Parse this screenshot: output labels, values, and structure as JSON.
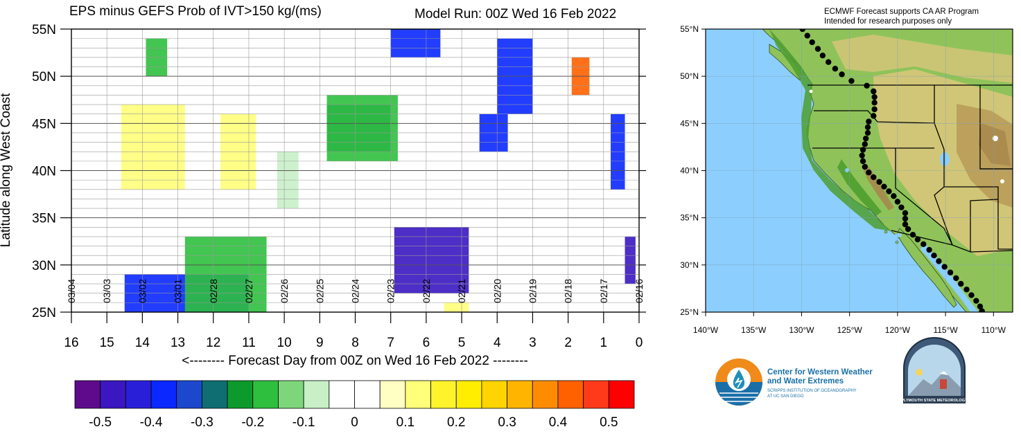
{
  "chart_data": [
    {
      "type": "heatmap",
      "title": "EPS minus GEFS Prob of IVT>150 kg/(ms)",
      "subtitle": "Model Run: 00Z Wed 16 Feb 2022",
      "ylabel": "Latitude along West Coast",
      "xlabel": "<-------- Forecast Day from 00Z on Wed 16 Feb 2022 --------",
      "y_ticks": [
        "55N",
        "50N",
        "45N",
        "40N",
        "35N",
        "30N",
        "25N"
      ],
      "y_values": [
        55,
        50,
        45,
        40,
        35,
        30,
        25
      ],
      "ylim": [
        25,
        55
      ],
      "x_ticks": [
        "16",
        "15",
        "14",
        "13",
        "12",
        "11",
        "10",
        "9",
        "8",
        "7",
        "6",
        "5",
        "4",
        "3",
        "2",
        "1",
        "0"
      ],
      "x_values": [
        16,
        15,
        14,
        13,
        12,
        11,
        10,
        9,
        8,
        7,
        6,
        5,
        4,
        3,
        2,
        1,
        0
      ],
      "xlim": [
        16,
        0
      ],
      "date_labels": [
        "03/04",
        "03/03",
        "03/02",
        "03/01",
        "02/28",
        "02/27",
        "02/26",
        "02/25",
        "02/24",
        "02/23",
        "02/22",
        "02/21",
        "02/20",
        "02/19",
        "02/18",
        "02/17",
        "02/16"
      ],
      "date_positions": [
        16,
        15,
        14,
        13,
        12,
        11,
        10,
        9,
        8,
        7,
        6,
        5,
        4,
        3,
        2,
        1,
        0
      ],
      "grid": "horizontal lines at each latitude, vertical lines at each day",
      "features": [
        {
          "label": "-0.5",
          "day_range": [
            4.8,
            6.9
          ],
          "lat_range": [
            27,
            34
          ]
        },
        {
          "label": "-0.4",
          "day_range": [
            11.0,
            14.5
          ],
          "lat_range": [
            25,
            29
          ]
        },
        {
          "label": "-0.3",
          "day_range": [
            7.0,
            8.8
          ],
          "lat_range": [
            42,
            47
          ]
        },
        {
          "label": "-0.2",
          "day_range": [
            6.8,
            8.8
          ],
          "lat_range": [
            41,
            48
          ]
        },
        {
          "label": "-0.4",
          "day_range": [
            5.6,
            7.0
          ],
          "lat_range": [
            52,
            55
          ]
        },
        {
          "label": "-0.4",
          "day_range": [
            3.7,
            4.5
          ],
          "lat_range": [
            42,
            46
          ]
        },
        {
          "label": "-0.4",
          "day_range": [
            3.0,
            4.0
          ],
          "lat_range": [
            46,
            54
          ]
        },
        {
          "label": "-0.1",
          "day_range": [
            9.6,
            10.2
          ],
          "lat_range": [
            36,
            42
          ]
        },
        {
          "label": "-0.2",
          "day_range": [
            13.3,
            13.9
          ],
          "lat_range": [
            50,
            54
          ]
        },
        {
          "label": "-0.2",
          "day_range": [
            10.5,
            12.8
          ],
          "lat_range": [
            25,
            33
          ]
        },
        {
          "label": "0.1",
          "day_range": [
            12.8,
            14.6
          ],
          "lat_range": [
            38,
            47
          ]
        },
        {
          "label": "0.1",
          "day_range": [
            10.8,
            11.8
          ],
          "lat_range": [
            38,
            46
          ]
        },
        {
          "label": "0.1",
          "day_range": [
            4.8,
            5.5
          ],
          "lat_range": [
            25,
            26
          ]
        },
        {
          "label": "0.4",
          "day_range": [
            1.4,
            1.9
          ],
          "lat_range": [
            48,
            52
          ]
        },
        {
          "label": "-0.5",
          "day_range": [
            0.1,
            0.4
          ],
          "lat_range": [
            28,
            33
          ]
        },
        {
          "label": "-0.4",
          "day_range": [
            0.4,
            0.8
          ],
          "lat_range": [
            38,
            46
          ]
        }
      ]
    },
    {
      "type": "colorbar",
      "tick_labels": [
        "-0.5",
        "-0.4",
        "-0.3",
        "-0.2",
        "-0.1",
        "0",
        "0.1",
        "0.2",
        "0.3",
        "0.4",
        "0.5"
      ],
      "tick_values": [
        -0.5,
        -0.4,
        -0.3,
        -0.2,
        -0.1,
        0,
        0.1,
        0.2,
        0.3,
        0.4,
        0.5
      ],
      "colors": [
        "#5e0a8c",
        "#3a17c0",
        "#2a1fd8",
        "#0a28ff",
        "#1b48cc",
        "#0f6e72",
        "#0c9a2c",
        "#2fbf3e",
        "#7dd77a",
        "#c8efc6",
        "#ffffff",
        "#ffffff",
        "#ffffc4",
        "#ffff7a",
        "#fff32c",
        "#ffee00",
        "#ffd400",
        "#ffb400",
        "#ff8c00",
        "#ff6000",
        "#ff3a1a",
        "#ff0000"
      ]
    }
  ],
  "map": {
    "header_line1": "ECMWF Forecast supports CA AR Program",
    "header_line2": "Intended for research purposes only",
    "lat_labels": [
      "55°N",
      "50°N",
      "45°N",
      "40°N",
      "35°N",
      "30°N",
      "25°N"
    ],
    "lon_labels": [
      "140°W",
      "135°W",
      "130°W",
      "125°W",
      "120°W",
      "115°W",
      "110°W"
    ],
    "colors": {
      "ocean": "#8ccfff",
      "land_low": "#4e9e2e",
      "land_mid": "#9ccf5c",
      "land_high": "#d8c67a",
      "mountain": "#a7864b",
      "snow": "#ffffff",
      "border": "#000000",
      "coast_dots": "#000000"
    }
  },
  "logos": {
    "cw3e_line1": "Center for Western Weather",
    "cw3e_line2": "and Water Extremes",
    "cw3e_line3": "SCRIPPS INSTITUTION OF OCEANOGRAPHY",
    "cw3e_line4": "AT UC SAN DIEGO",
    "plymouth": "PLYMOUTH STATE METEOROLOGY",
    "cw3e_colors": {
      "orange": "#f08a1a",
      "blue": "#1a6fa8",
      "teal": "#1f8fb8"
    }
  }
}
